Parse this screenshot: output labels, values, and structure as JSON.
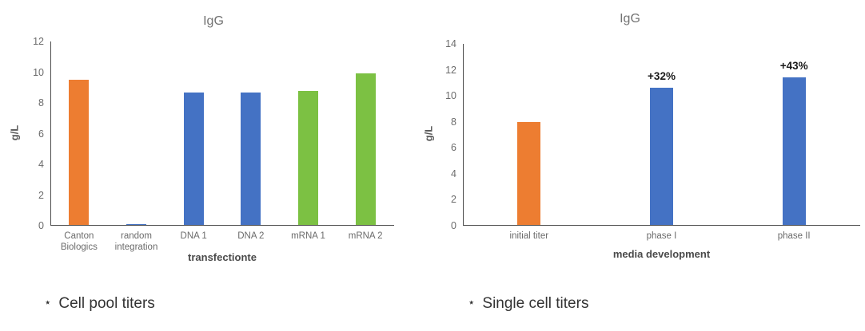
{
  "colors": {
    "orange": "#ED7D31",
    "blue": "#4472C4",
    "green": "#7CC143",
    "axis_line": "#4d4d4d",
    "tick_text": "#6b6b6b",
    "title_text": "#737373"
  },
  "chart_data": [
    {
      "type": "bar",
      "title": "IgG",
      "xlabel": "transfectionte",
      "ylabel": "g/L",
      "ylim": [
        0,
        12
      ],
      "ytick_step": 2,
      "grid": false,
      "legend": "none",
      "categories": [
        "Canton Biologics",
        "random integration",
        "DNA 1",
        "DNA 2",
        "mRNA 1",
        "mRNA 2"
      ],
      "values": [
        9.5,
        0.1,
        8.7,
        8.7,
        8.8,
        9.9
      ],
      "bar_colors": [
        "orange",
        "blue",
        "blue",
        "blue",
        "green",
        "green"
      ],
      "annotations": [
        "",
        "",
        "",
        "",
        "",
        ""
      ]
    },
    {
      "type": "bar",
      "title": "IgG",
      "xlabel": "media development",
      "ylabel": "g/L",
      "ylim": [
        0,
        14
      ],
      "ytick_step": 2,
      "grid": false,
      "legend": "none",
      "categories": [
        "initial titer",
        "phase I",
        "phase II"
      ],
      "values": [
        8.0,
        10.6,
        11.4
      ],
      "bar_colors": [
        "orange",
        "blue",
        "blue"
      ],
      "annotations": [
        "",
        "+32%",
        "+43%"
      ]
    }
  ],
  "captions": [
    {
      "star": "⋆",
      "text": "Cell pool titers"
    },
    {
      "star": "⋆",
      "text": "Single cell titers"
    }
  ]
}
